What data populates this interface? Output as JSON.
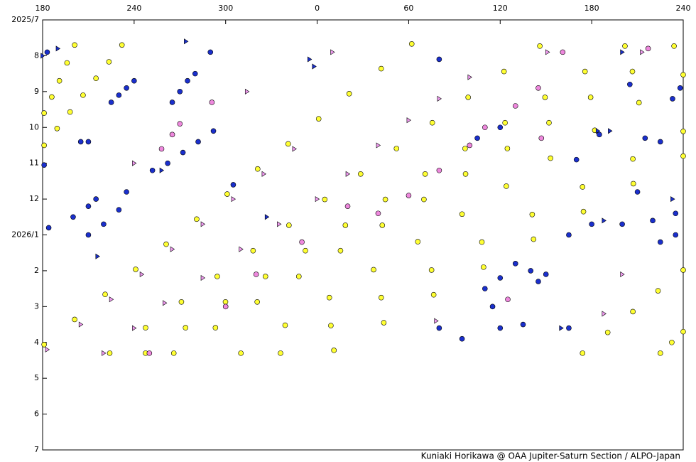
{
  "chart_data": {
    "type": "scatter",
    "footer": "Kuniaki Horikawa @ OAA Jupiter-Saturn Section / ALPO-Japan",
    "xlim": [
      180,
      600
    ],
    "xticks": [
      180,
      240,
      300,
      {
        "value": 360,
        "label": "0"
      },
      {
        "value": 420,
        "label": "60"
      },
      {
        "value": 480,
        "label": "120"
      },
      {
        "value": 540,
        "label": "180"
      },
      {
        "value": 600,
        "label": "240"
      }
    ],
    "ylim": [
      7,
      19
    ],
    "y_inverted": true,
    "yticks": [
      {
        "value": 7,
        "label": "2025/7"
      },
      8,
      9,
      10,
      11,
      12,
      {
        "value": 13,
        "label": "2026/1"
      },
      {
        "value": 14,
        "label": "2"
      },
      {
        "value": 15,
        "label": "3"
      },
      {
        "value": 16,
        "label": "4"
      },
      {
        "value": 17,
        "label": "5"
      },
      {
        "value": 18,
        "label": "6"
      },
      {
        "value": 19,
        "label": "7"
      }
    ],
    "series": [
      {
        "marker": "circle",
        "color": "#ffff33",
        "x": [
          181,
          186,
          191,
          196,
          201,
          181,
          189.5,
          198,
          206.5,
          215,
          223.5,
          232,
          181,
          201,
          221,
          241,
          261,
          281,
          301,
          321,
          341,
          361,
          381,
          402,
          422,
          224,
          247.5,
          271,
          294.5,
          318,
          341.5,
          365,
          388.5,
          412,
          435.5,
          459,
          482.5,
          506,
          247.5,
          273.7,
          299.9,
          326.1,
          352.3,
          378.5,
          404.7,
          430.8,
          457,
          483.2,
          509.4,
          535.6,
          561.8,
          266,
          293.3,
          320.7,
          348,
          375.3,
          402.7,
          430,
          457.3,
          484.7,
          512,
          539.3,
          566.7,
          594,
          310,
          339,
          368,
          397,
          426,
          455,
          484,
          513,
          542,
          571,
          600,
          336,
          369,
          402,
          435,
          468,
          501,
          534,
          567,
          600,
          371,
          403.7,
          436.4,
          469.1,
          501.9,
          534.6,
          567.3,
          600,
          534,
          550.5,
          567,
          583.5,
          600,
          585,
          592.5,
          600
        ],
        "y": [
          9.6,
          9.15,
          8.7,
          8.2,
          7.7,
          10.5,
          10.03,
          9.57,
          9.1,
          8.63,
          8.17,
          7.7,
          16.06,
          15.36,
          14.66,
          13.96,
          13.26,
          12.56,
          11.86,
          11.16,
          10.46,
          9.76,
          9.06,
          8.36,
          7.67,
          16.3,
          15.59,
          14.87,
          14.16,
          13.44,
          12.73,
          12.01,
          11.3,
          10.59,
          9.87,
          9.16,
          8.44,
          7.73,
          16.3,
          15.59,
          14.87,
          14.16,
          13.44,
          12.73,
          12.01,
          11.3,
          10.59,
          9.87,
          9.16,
          8.44,
          7.73,
          16.3,
          15.59,
          14.87,
          14.16,
          13.44,
          12.73,
          12.01,
          11.3,
          10.59,
          9.87,
          9.16,
          8.44,
          7.73,
          16.3,
          15.52,
          14.75,
          13.97,
          13.19,
          12.42,
          11.64,
          10.86,
          10.08,
          9.31,
          8.53,
          16.3,
          15.53,
          14.75,
          13.98,
          13.2,
          12.43,
          11.66,
          10.88,
          10.11,
          16.22,
          15.45,
          14.67,
          13.9,
          13.12,
          12.35,
          11.57,
          10.8,
          16.3,
          15.72,
          15.14,
          14.56,
          13.98,
          16.3,
          16.0,
          15.7
        ]
      },
      {
        "marker": "triangle",
        "color": "#ee99ee",
        "x": [
          183,
          205,
          225,
          245,
          265,
          285,
          305,
          325,
          345,
          220,
          240,
          260,
          285,
          310,
          335,
          360,
          380,
          400,
          420,
          440,
          460,
          314,
          370,
          438,
          573,
          511,
          548,
          560,
          240
        ],
        "y": [
          16.2,
          15.5,
          14.8,
          14.1,
          13.4,
          12.7,
          12.0,
          11.3,
          10.6,
          16.3,
          15.6,
          14.9,
          14.2,
          13.4,
          12.7,
          12.0,
          11.3,
          10.5,
          9.8,
          9.2,
          8.6,
          9.0,
          7.9,
          15.4,
          7.9,
          7.9,
          15.2,
          14.1,
          11.0
        ]
      },
      {
        "marker": "circle",
        "color": "#ee88dd",
        "x": [
          258,
          265,
          270,
          291,
          250,
          300,
          320,
          350,
          380,
          400,
          420,
          440,
          460,
          470,
          490,
          505,
          521,
          577,
          507,
          485
        ],
        "y": [
          10.6,
          10.2,
          9.9,
          9.3,
          16.3,
          15.0,
          14.1,
          13.2,
          12.2,
          12.4,
          11.9,
          11.2,
          10.5,
          10.0,
          9.4,
          8.9,
          7.9,
          7.8,
          10.3,
          14.8
        ]
      },
      {
        "marker": "circle",
        "color": "#1a2fcc",
        "x": [
          181,
          183,
          205,
          210,
          225,
          230,
          235,
          240,
          265,
          270,
          275,
          280,
          290,
          252,
          262,
          272,
          282,
          292,
          184,
          200,
          210,
          215,
          210,
          220,
          230,
          235,
          470,
          480,
          490,
          500,
          505,
          510,
          475,
          480,
          495,
          525,
          440,
          455,
          465,
          480,
          575,
          585,
          593,
          598,
          570,
          560,
          580,
          595,
          525,
          540,
          585,
          595,
          305,
          545,
          530,
          565,
          440
        ],
        "y": [
          11.05,
          7.9,
          10.4,
          10.4,
          9.3,
          9.1,
          8.9,
          8.7,
          9.3,
          9.0,
          8.7,
          8.5,
          7.9,
          11.2,
          11.0,
          10.7,
          10.4,
          10.1,
          12.8,
          12.5,
          12.2,
          12.0,
          13.0,
          12.7,
          12.3,
          11.8,
          14.5,
          14.2,
          13.8,
          14.0,
          14.3,
          14.1,
          15.0,
          15.6,
          15.5,
          15.6,
          15.6,
          15.9,
          10.3,
          10.0,
          10.3,
          10.4,
          9.2,
          8.9,
          11.8,
          12.7,
          12.6,
          12.4,
          13.0,
          12.7,
          13.2,
          13.0,
          11.6,
          10.2,
          10.9,
          8.8,
          8.1
        ]
      },
      {
        "marker": "triangle",
        "color": "#1a2fcc",
        "x": [
          180,
          190,
          274,
          327,
          355,
          358,
          552,
          544,
          593,
          520,
          548,
          216,
          258,
          560
        ],
        "y": [
          8.0,
          7.8,
          7.6,
          12.5,
          8.1,
          8.3,
          10.1,
          10.1,
          12.0,
          15.6,
          12.6,
          13.6,
          11.2,
          7.9
        ]
      }
    ]
  }
}
